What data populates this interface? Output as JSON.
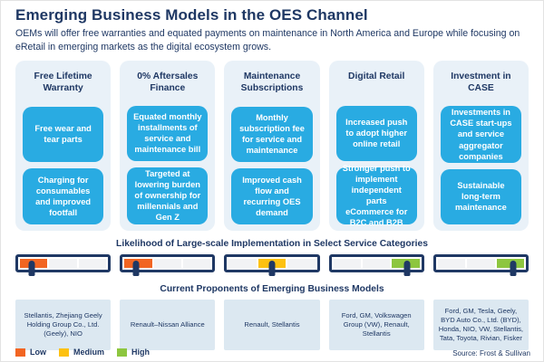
{
  "page": {
    "title": "Emerging Business Models in the OES Channel",
    "subtitle": "OEMs will offer free warranties and equated payments on maintenance in North America and Europe while focusing on eRetail in emerging markets as the digital ecosystem grows.",
    "source": "Source: Frost & Sullivan"
  },
  "sections": {
    "likelihood_heading": "Likelihood of Large-scale Implementation in Select Service Categories",
    "proponents_heading": "Current Proponents of Emerging Business Models"
  },
  "colors": {
    "navy": "#1F3864",
    "bright_blue": "#29ABE2",
    "panel_blue": "#E9F1F8",
    "proponent_box_blue": "#DCE8F1",
    "low": "#F26522",
    "medium": "#FDC110",
    "high": "#8DC63F"
  },
  "columns": [
    {
      "header": "Free Lifetime Warranty",
      "box1": "Free wear and tear parts",
      "box2": "Charging for consumables and improved footfall",
      "likelihood": {
        "level": "Low",
        "segment": 0,
        "pointer_pct": 15
      },
      "proponents": "Stellantis, Zhejiang Geely Holding Group Co., Ltd. (Geely), NIO"
    },
    {
      "header": "0% Aftersales Finance",
      "box1": "Equated monthly installments of service and maintenance bill",
      "box2": "Targeted at lowering burden of ownership for millennials and Gen Z",
      "likelihood": {
        "level": "Low",
        "segment": 0,
        "pointer_pct": 15
      },
      "proponents": "Renault–Nissan Alliance"
    },
    {
      "header": "Maintenance Subscriptions",
      "box1": "Monthly subscription fee for service and maintenance",
      "box2": "Improved cash flow and recurring OES demand",
      "likelihood": {
        "level": "Medium",
        "segment": 1,
        "pointer_pct": 50
      },
      "proponents": "Renault, Stellantis"
    },
    {
      "header": "Digital Retail",
      "box1": "Increased push to adopt higher online retail",
      "box2": "Stronger push to implement independent parts eCommerce for B2C and B2B",
      "likelihood": {
        "level": "High",
        "segment": 2,
        "pointer_pct": 84
      },
      "proponents": "Ford, GM, Volkswagen Group (VW), Renault, Stellantis"
    },
    {
      "header": "Investment in CASE",
      "box1": "Investments in CASE start-ups and service aggregator companies",
      "box2": "Sustainable long-term maintenance",
      "likelihood": {
        "level": "High",
        "segment": 2,
        "pointer_pct": 86
      },
      "proponents": "Ford, GM, Tesla, Geely, BYD Auto Co., Ltd. (BYD), Honda, NIO, VW, Stellantis, Tata, Toyota, Rivian, Fisker"
    }
  ],
  "legend": [
    {
      "label": "Low",
      "color": "#F26522"
    },
    {
      "label": "Medium",
      "color": "#FDC110"
    },
    {
      "label": "High",
      "color": "#8DC63F"
    }
  ]
}
